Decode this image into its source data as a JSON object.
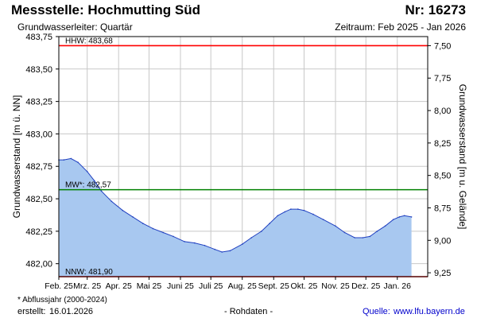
{
  "header": {
    "title": "Messstelle: Hochmutting Süd",
    "subtitle": "Grundwasserleiter: Quartär",
    "nr": "Nr: 16273",
    "period": "Zeitraum: Feb 2025 - Jan 2026"
  },
  "footer": {
    "footnote": "* Abflussjahr (2000-2024)",
    "created_label": "erstellt:",
    "created_date": "16.01.2026",
    "rawdata": "- Rohdaten -",
    "source_label": "Quelle:",
    "source_url": "www.lfu.bayern.de"
  },
  "colors": {
    "fill": "#a8c8f0",
    "line": "#2040c0",
    "hhw": "#ff0000",
    "mw": "#008000",
    "nnw": "#ff0000",
    "grid": "#c8c8c8"
  },
  "chart_data": {
    "type": "area",
    "ylabel": "Grundwasserstand [m ü. NN]",
    "ylabel_right": "Grundwasserstand [m u. Gelände]",
    "ylim": [
      481.9,
      483.75
    ],
    "yticks": [
      "483,75",
      "483,50",
      "483,25",
      "483,00",
      "482,75",
      "482,50",
      "482,25",
      "482,00"
    ],
    "ytick_values": [
      483.75,
      483.5,
      483.25,
      483.0,
      482.75,
      482.5,
      482.25,
      482.0
    ],
    "yticks_right": [
      "7,50",
      "7,75",
      "8,00",
      "8,25",
      "8,50",
      "8,75",
      "9,00",
      "9,25"
    ],
    "yticks_right_values": [
      7.5,
      7.75,
      8.0,
      8.25,
      8.5,
      8.75,
      9.0,
      9.25
    ],
    "ground_level": 491.18,
    "xlim": [
      "2025-02-01",
      "2026-01-31"
    ],
    "xticks": [
      "Feb. 25",
      "Mrz. 25",
      "Apr. 25",
      "Mai 25",
      "Juni 25",
      "Juli 25",
      "Aug. 25",
      "Sept. 25",
      "Okt. 25",
      "Nov. 25",
      "Dez. 25",
      "Jan. 26"
    ],
    "xtick_dates": [
      "2025-02-01",
      "2025-03-01",
      "2025-04-01",
      "2025-05-01",
      "2025-06-01",
      "2025-07-01",
      "2025-08-01",
      "2025-09-01",
      "2025-10-01",
      "2025-11-01",
      "2025-12-01",
      "2026-01-01"
    ],
    "series": [
      {
        "x": [
          "2025-02-01",
          "2025-02-06",
          "2025-02-13",
          "2025-02-20",
          "2025-03-01",
          "2025-03-08",
          "2025-03-15",
          "2025-03-25",
          "2025-04-05",
          "2025-04-15",
          "2025-04-25",
          "2025-05-05",
          "2025-05-15",
          "2025-05-25",
          "2025-06-05",
          "2025-06-15",
          "2025-06-25",
          "2025-07-05",
          "2025-07-12",
          "2025-07-20",
          "2025-08-01",
          "2025-08-10",
          "2025-08-20",
          "2025-08-28",
          "2025-09-05",
          "2025-09-12",
          "2025-09-18",
          "2025-09-25",
          "2025-10-01",
          "2025-10-10",
          "2025-10-20",
          "2025-11-01",
          "2025-11-10",
          "2025-11-20",
          "2025-11-28",
          "2025-12-05",
          "2025-12-12",
          "2025-12-20",
          "2025-12-28",
          "2026-01-03",
          "2026-01-08",
          "2026-01-15"
        ],
        "values": [
          482.8,
          482.8,
          482.81,
          482.78,
          482.71,
          482.64,
          482.56,
          482.48,
          482.41,
          482.36,
          482.31,
          482.27,
          482.24,
          482.21,
          482.17,
          482.16,
          482.14,
          482.11,
          482.09,
          482.1,
          482.15,
          482.2,
          482.25,
          482.31,
          482.37,
          482.4,
          482.42,
          482.42,
          482.41,
          482.38,
          482.34,
          482.29,
          482.24,
          482.2,
          482.2,
          482.21,
          482.25,
          482.29,
          482.34,
          482.36,
          482.37,
          482.36
        ]
      }
    ],
    "reference_lines": [
      {
        "label": "HHW: 483,68",
        "value": 483.68
      },
      {
        "label": "MW*: 482,57",
        "value": 482.57
      },
      {
        "label": "NNW: 481,90",
        "value": 481.9
      }
    ]
  }
}
